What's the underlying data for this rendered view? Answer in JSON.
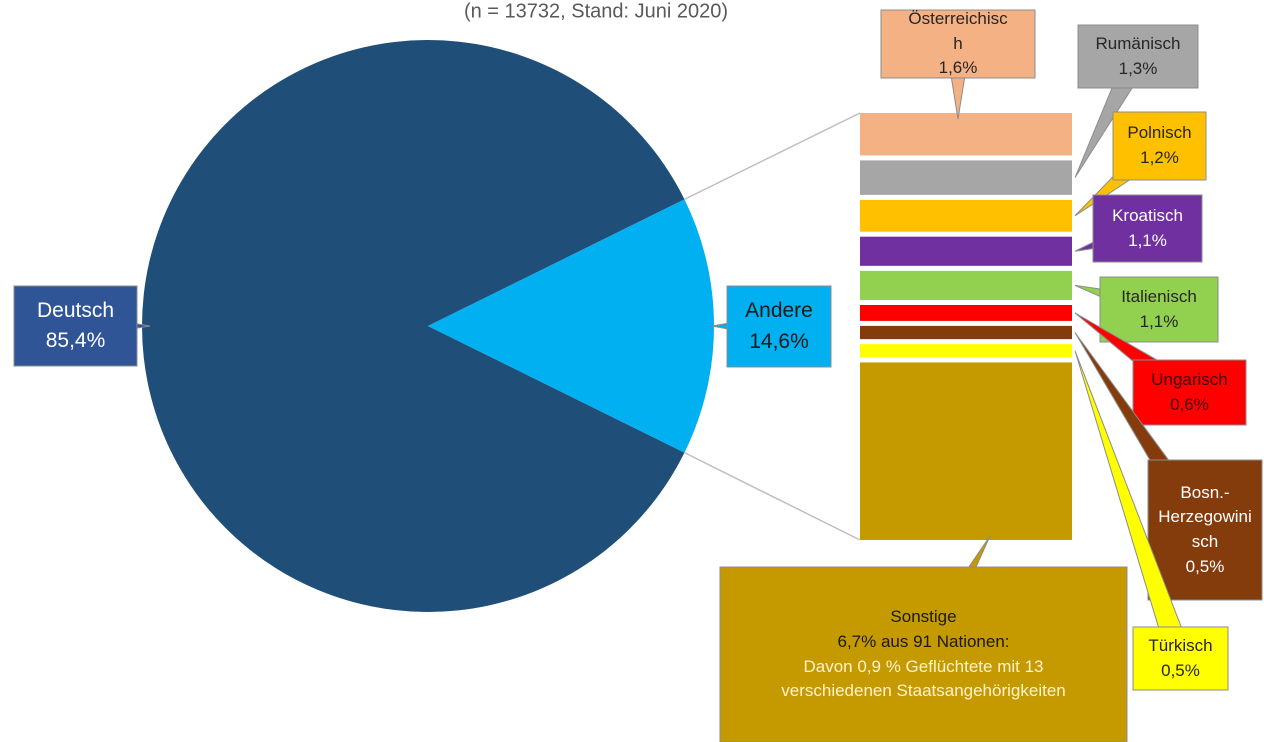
{
  "chart_data": {
    "type": "pie-of-bar",
    "subtitle": "(n = 13732, Stand: Juni 2020)",
    "pie": {
      "categories": [
        "Deutsch",
        "Andere"
      ],
      "values": [
        85.4,
        14.6
      ],
      "value_labels": [
        "85,4%",
        "14,6%"
      ],
      "colors": [
        "#1f4e79",
        "#00b0f0"
      ]
    },
    "bar": {
      "categories": [
        "Österreichisch",
        "Rumänisch",
        "Polnisch",
        "Kroatisch",
        "Italienisch",
        "Ungarisch",
        "Bosn.-Herzegowinisch",
        "Türkisch",
        "Sonstige"
      ],
      "values": [
        1.6,
        1.3,
        1.2,
        1.1,
        1.1,
        0.6,
        0.5,
        0.5,
        6.7
      ],
      "value_labels": [
        "1,6%",
        "1,3%",
        "1,2%",
        "1,1%",
        "1,1%",
        "0,6%",
        "0,5%",
        "0,5%",
        "6,7%"
      ],
      "colors": [
        "#f4b183",
        "#a6a6a6",
        "#ffc000",
        "#7030a0",
        "#92d050",
        "#ff0000",
        "#843c0c",
        "#ffff00",
        "#c59a00"
      ]
    },
    "annotation": "aus 91 Nationen:",
    "note": "Davon 0,9 % Geflüchtete mit 13 verschiedenen Staatsangehörigkeiten"
  }
}
